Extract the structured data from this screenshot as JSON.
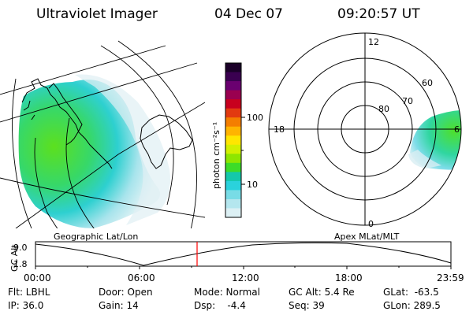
{
  "header": {
    "instrument": "Ultraviolet Imager",
    "date": "04 Dec 07",
    "time": "09:20:57 UT"
  },
  "colorbar": {
    "unit_label": "photon cm⁻²s⁻¹",
    "ticks": [
      "100",
      "10"
    ],
    "colors": [
      "#1a0028",
      "#3a0050",
      "#6a0070",
      "#9a0050",
      "#c8001e",
      "#e23a10",
      "#f47e00",
      "#ffb400",
      "#ffe600",
      "#d2f000",
      "#8ee600",
      "#3cdc28",
      "#14c8aa",
      "#2ad2dc",
      "#78dce6",
      "#b4e6ee",
      "#dcf0f4"
    ]
  },
  "left_panel": {
    "caption": "Geographic Lat/Lon"
  },
  "right_panel": {
    "caption": "Apex MLat/MLT",
    "lat_labels": [
      "80",
      "70",
      "60"
    ],
    "mlt_labels": [
      "12",
      "18",
      "6",
      "0"
    ]
  },
  "altitude_plot": {
    "ylabel": "GC Alt",
    "yticks": [
      "9.0",
      "1.8"
    ],
    "xticks": [
      "00:00",
      "06:00",
      "12:00",
      "18:00",
      "23:59"
    ],
    "current_time_fraction": 0.389,
    "marker_color": "#ff0000"
  },
  "info": {
    "flt": "Flt: LBHL",
    "ip": "IP: 36.0",
    "door": "Door: Open",
    "gain": "Gain: 14",
    "mode": "Mode: Normal",
    "dsp": "Dsp:    -4.4",
    "gcalt": "GC Alt: 5.4 Re",
    "seq": "Seq: 39",
    "glat": "GLat:  -63.5",
    "glon": "GLon: 289.5"
  }
}
